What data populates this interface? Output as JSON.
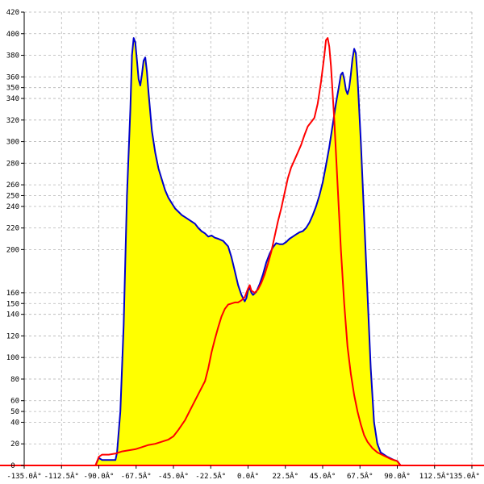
{
  "chart_data": {
    "type": "line",
    "title": "",
    "xlabel": "",
    "ylabel": "",
    "xlim": [
      -135,
      135
    ],
    "ylim": [
      0,
      420
    ],
    "grid": true,
    "x_ticks": [
      -135,
      -112.5,
      -90,
      -67.5,
      -45,
      -22.5,
      0,
      22.5,
      45,
      67.5,
      90,
      112.5,
      135
    ],
    "x_tick_labels": [
      "-135.0Â°",
      "-112.5Â°",
      "-90.0Â°",
      "-67.5Â°",
      "-45.0Â°",
      "-22.5Â°",
      "0.0Â°",
      "22.5Â°",
      "45.0Â°",
      "67.5Â°",
      "90.0Â°",
      "112.5Â°",
      "135.0Â°"
    ],
    "y_ticks": [
      0,
      20,
      40,
      50,
      60,
      80,
      100,
      120,
      140,
      150,
      160,
      200,
      220,
      240,
      250,
      260,
      280,
      300,
      320,
      340,
      350,
      360,
      380,
      400,
      420
    ],
    "y_tick_labels": [
      "0",
      "20",
      "40",
      "50",
      "60",
      "80",
      "100",
      "120",
      "140",
      "150",
      "160",
      "200",
      "220",
      "240",
      "250",
      "260",
      "280",
      "300",
      "320",
      "340",
      "350",
      "360",
      "380",
      "400",
      "420"
    ],
    "series": [
      {
        "color": "#0000cc",
        "fill": "#ffff00",
        "points": [
          [
            -135,
            0
          ],
          [
            -92,
            0
          ],
          [
            -90,
            7
          ],
          [
            -88,
            5
          ],
          [
            -85,
            5
          ],
          [
            -80,
            5
          ],
          [
            -79,
            12
          ],
          [
            -77,
            50
          ],
          [
            -75,
            130
          ],
          [
            -73,
            250
          ],
          [
            -71,
            330
          ],
          [
            -70,
            380
          ],
          [
            -69,
            396
          ],
          [
            -68,
            392
          ],
          [
            -67,
            375
          ],
          [
            -66,
            358
          ],
          [
            -65,
            352
          ],
          [
            -64,
            362
          ],
          [
            -63,
            375
          ],
          [
            -62,
            378
          ],
          [
            -61,
            365
          ],
          [
            -60,
            345
          ],
          [
            -58,
            310
          ],
          [
            -56,
            290
          ],
          [
            -54,
            275
          ],
          [
            -52,
            265
          ],
          [
            -50,
            255
          ],
          [
            -48,
            248
          ],
          [
            -46,
            243
          ],
          [
            -44,
            238
          ],
          [
            -42,
            235
          ],
          [
            -40,
            232
          ],
          [
            -38,
            230
          ],
          [
            -35,
            227
          ],
          [
            -32,
            224
          ],
          [
            -30,
            220
          ],
          [
            -28,
            217
          ],
          [
            -26,
            215
          ],
          [
            -24,
            212
          ],
          [
            -22,
            213
          ],
          [
            -20,
            211
          ],
          [
            -18,
            210
          ],
          [
            -15,
            208
          ],
          [
            -12,
            203
          ],
          [
            -10,
            193
          ],
          [
            -8,
            180
          ],
          [
            -6,
            167
          ],
          [
            -4,
            158
          ],
          [
            -2,
            152
          ],
          [
            -1,
            155
          ],
          [
            0,
            162
          ],
          [
            1,
            165
          ],
          [
            2,
            160
          ],
          [
            3,
            158
          ],
          [
            5,
            161
          ],
          [
            7,
            168
          ],
          [
            9,
            177
          ],
          [
            11,
            188
          ],
          [
            13,
            196
          ],
          [
            15,
            202
          ],
          [
            17,
            206
          ],
          [
            19,
            205
          ],
          [
            21,
            205
          ],
          [
            23,
            207
          ],
          [
            25,
            210
          ],
          [
            27,
            212
          ],
          [
            29,
            214
          ],
          [
            31,
            216
          ],
          [
            33,
            217
          ],
          [
            35,
            220
          ],
          [
            37,
            225
          ],
          [
            39,
            232
          ],
          [
            41,
            240
          ],
          [
            43,
            250
          ],
          [
            45,
            262
          ],
          [
            47,
            278
          ],
          [
            49,
            295
          ],
          [
            51,
            315
          ],
          [
            53,
            335
          ],
          [
            55,
            353
          ],
          [
            56,
            362
          ],
          [
            57,
            364
          ],
          [
            58,
            358
          ],
          [
            59,
            348
          ],
          [
            60,
            344
          ],
          [
            61,
            350
          ],
          [
            62,
            362
          ],
          [
            63,
            377
          ],
          [
            64,
            386
          ],
          [
            65,
            382
          ],
          [
            66,
            360
          ],
          [
            68,
            300
          ],
          [
            70,
            230
          ],
          [
            72,
            160
          ],
          [
            74,
            90
          ],
          [
            76,
            40
          ],
          [
            78,
            20
          ],
          [
            80,
            12
          ],
          [
            84,
            8
          ],
          [
            88,
            5
          ],
          [
            90,
            4
          ],
          [
            92,
            0
          ],
          [
            135,
            0
          ]
        ]
      },
      {
        "color": "#ff0000",
        "points": [
          [
            -135,
            0
          ],
          [
            -92,
            0
          ],
          [
            -90,
            8
          ],
          [
            -88,
            10
          ],
          [
            -84,
            10
          ],
          [
            -80,
            11
          ],
          [
            -78,
            12
          ],
          [
            -76,
            13
          ],
          [
            -72,
            14
          ],
          [
            -68,
            15
          ],
          [
            -64,
            17
          ],
          [
            -60,
            19
          ],
          [
            -56,
            20
          ],
          [
            -52,
            22
          ],
          [
            -48,
            24
          ],
          [
            -45,
            27
          ],
          [
            -42,
            33
          ],
          [
            -38,
            42
          ],
          [
            -34,
            54
          ],
          [
            -30,
            66
          ],
          [
            -26,
            78
          ],
          [
            -24,
            90
          ],
          [
            -22,
            105
          ],
          [
            -20,
            117
          ],
          [
            -18,
            128
          ],
          [
            -16,
            138
          ],
          [
            -14,
            145
          ],
          [
            -12,
            149
          ],
          [
            -10,
            150
          ],
          [
            -8,
            151
          ],
          [
            -6,
            151
          ],
          [
            -4,
            153
          ],
          [
            -2,
            156
          ],
          [
            0,
            164
          ],
          [
            1,
            167
          ],
          [
            2,
            162
          ],
          [
            4,
            160
          ],
          [
            6,
            163
          ],
          [
            8,
            169
          ],
          [
            10,
            177
          ],
          [
            12,
            187
          ],
          [
            14,
            198
          ],
          [
            16,
            212
          ],
          [
            18,
            226
          ],
          [
            20,
            238
          ],
          [
            22,
            252
          ],
          [
            24,
            266
          ],
          [
            26,
            276
          ],
          [
            28,
            283
          ],
          [
            30,
            290
          ],
          [
            32,
            297
          ],
          [
            34,
            306
          ],
          [
            36,
            314
          ],
          [
            38,
            318
          ],
          [
            40,
            322
          ],
          [
            42,
            335
          ],
          [
            44,
            355
          ],
          [
            46,
            380
          ],
          [
            47,
            394
          ],
          [
            48,
            396
          ],
          [
            49,
            388
          ],
          [
            50,
            370
          ],
          [
            52,
            320
          ],
          [
            54,
            260
          ],
          [
            56,
            200
          ],
          [
            58,
            150
          ],
          [
            60,
            110
          ],
          [
            62,
            85
          ],
          [
            64,
            65
          ],
          [
            66,
            50
          ],
          [
            68,
            38
          ],
          [
            70,
            28
          ],
          [
            72,
            22
          ],
          [
            75,
            16
          ],
          [
            78,
            12
          ],
          [
            82,
            9
          ],
          [
            86,
            6
          ],
          [
            90,
            4
          ],
          [
            92,
            0
          ],
          [
            135,
            0
          ]
        ]
      }
    ]
  }
}
